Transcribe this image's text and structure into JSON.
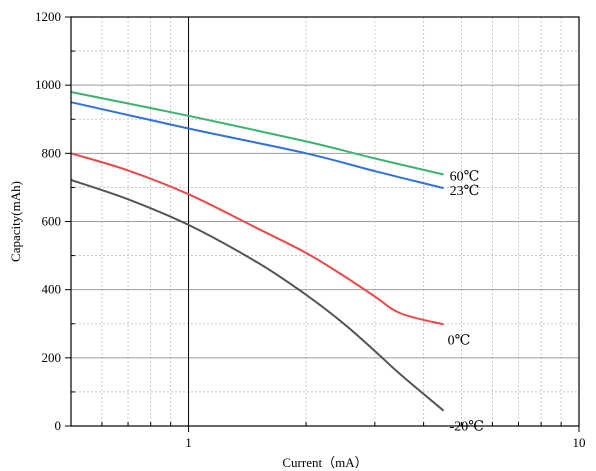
{
  "chart_data": {
    "type": "line",
    "xlabel": "Current（mA）",
    "ylabel": "Capacity(mAh)",
    "xscale": "log",
    "xlim": [
      0.5,
      10
    ],
    "ylim": [
      0,
      1200
    ],
    "xticks": [
      1,
      10
    ],
    "xtick_labels": [
      "1",
      "10"
    ],
    "yticks": [
      0,
      200,
      400,
      600,
      800,
      1000,
      1200
    ],
    "ytick_labels": [
      "0",
      "200",
      "400",
      "600",
      "800",
      "1000",
      "1200"
    ],
    "grid": true,
    "legend": "inline labels at line ends",
    "series": [
      {
        "name": "60℃",
        "color": "#3cb371",
        "x": [
          0.5,
          1,
          2,
          3,
          4.5
        ],
        "y": [
          980,
          910,
          835,
          785,
          738
        ]
      },
      {
        "name": "23℃",
        "color": "#2f74d6",
        "x": [
          0.5,
          1,
          2,
          3,
          4.5
        ],
        "y": [
          950,
          873,
          800,
          748,
          698
        ]
      },
      {
        "name": "0℃",
        "color": "#e84a4a",
        "x": [
          0.5,
          0.7,
          1,
          1.5,
          2,
          2.5,
          3,
          3.5,
          4.5
        ],
        "y": [
          800,
          750,
          680,
          580,
          508,
          440,
          380,
          330,
          298
        ]
      },
      {
        "name": "-20℃",
        "color": "#555555",
        "x": [
          0.5,
          0.7,
          1,
          1.5,
          2,
          2.5,
          3,
          3.5,
          4.5
        ],
        "y": [
          722,
          665,
          590,
          480,
          385,
          300,
          220,
          150,
          45
        ]
      }
    ]
  }
}
